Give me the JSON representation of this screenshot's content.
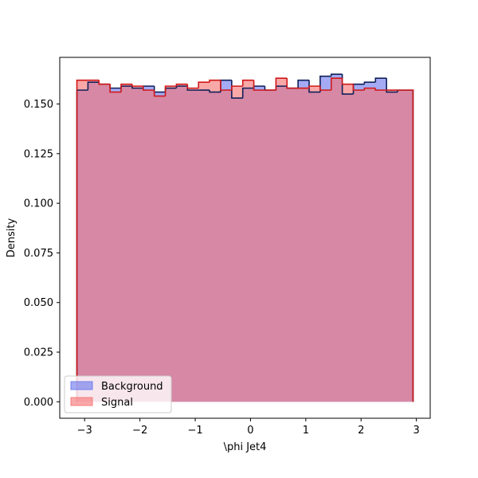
{
  "chart_data": {
    "type": "histogram",
    "xlabel": "\\phi Jet4",
    "ylabel": "Density",
    "xlim": [
      -3.45,
      3.25
    ],
    "ylim": [
      -0.0083,
      0.1735
    ],
    "grid": false,
    "legend_position": "lower-left",
    "x_ticks": [
      -3,
      -2,
      -1,
      0,
      1,
      2,
      3
    ],
    "x_tick_labels": [
      "−3",
      "−2",
      "−1",
      "0",
      "1",
      "2",
      "3"
    ],
    "y_ticks": [
      0.0,
      0.025,
      0.05,
      0.075,
      0.1,
      0.125,
      0.15
    ],
    "y_tick_labels": [
      "0.000",
      "0.025",
      "0.050",
      "0.075",
      "0.100",
      "0.125",
      "0.150"
    ],
    "bin_edges": [
      -3.14,
      -2.94,
      -2.74,
      -2.54,
      -2.34,
      -2.14,
      -1.94,
      -1.74,
      -1.54,
      -1.34,
      -1.14,
      -0.94,
      -0.74,
      -0.54,
      -0.34,
      -0.14,
      0.06,
      0.26,
      0.46,
      0.66,
      0.86,
      1.06,
      1.26,
      1.46,
      1.66,
      1.86,
      2.06,
      2.26,
      2.46,
      2.66,
      2.94
    ],
    "series": [
      {
        "name": "Background",
        "fill_color": "#6c78ee",
        "edge_color": "#10205a",
        "values": [
          0.157,
          0.161,
          0.16,
          0.158,
          0.159,
          0.158,
          0.159,
          0.156,
          0.158,
          0.159,
          0.157,
          0.157,
          0.156,
          0.162,
          0.153,
          0.158,
          0.159,
          0.157,
          0.159,
          0.158,
          0.162,
          0.156,
          0.164,
          0.165,
          0.155,
          0.16,
          0.161,
          0.163,
          0.156,
          0.157
        ]
      },
      {
        "name": "Signal",
        "fill_color": "#f57272",
        "edge_color": "#d01818",
        "values": [
          0.162,
          0.162,
          0.16,
          0.156,
          0.16,
          0.159,
          0.157,
          0.154,
          0.159,
          0.16,
          0.158,
          0.161,
          0.162,
          0.157,
          0.159,
          0.162,
          0.157,
          0.157,
          0.163,
          0.158,
          0.158,
          0.159,
          0.157,
          0.163,
          0.16,
          0.157,
          0.158,
          0.157,
          0.157,
          0.157
        ]
      }
    ]
  }
}
